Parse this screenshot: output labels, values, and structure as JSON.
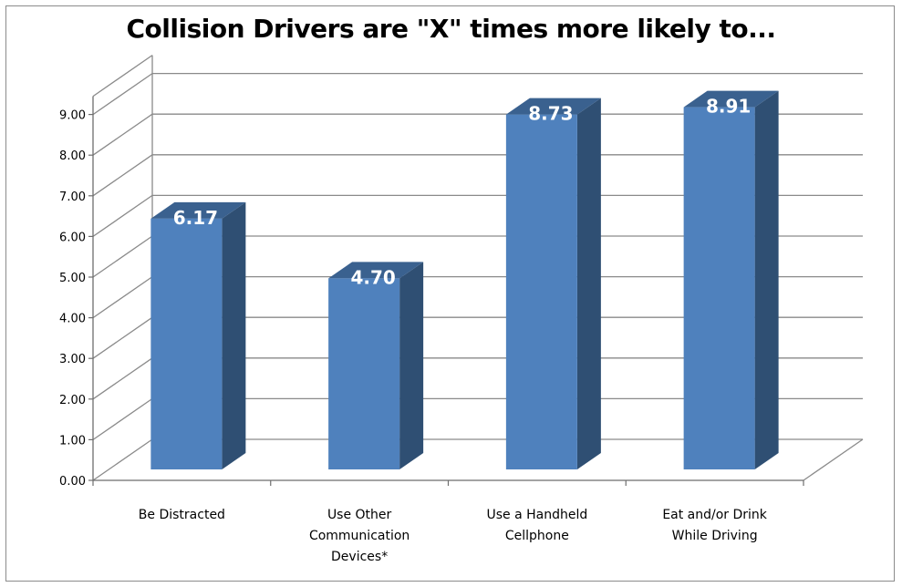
{
  "chart_data": {
    "type": "bar",
    "style": "3d-column",
    "title": "Collision Drivers are \"X\" times more likely to...",
    "categories": [
      [
        "Be Distracted"
      ],
      [
        "Use Other",
        "Communication",
        "Devices*"
      ],
      [
        "Use a Handheld",
        "Cellphone"
      ],
      [
        "Eat and/or Drink",
        "While Driving"
      ]
    ],
    "values": [
      6.17,
      4.7,
      8.73,
      8.91
    ],
    "data_labels": [
      "6.17",
      "4.70",
      "8.73",
      "8.91"
    ],
    "ylim": [
      0,
      9
    ],
    "yticks": [
      "0.00",
      "1.00",
      "2.00",
      "3.00",
      "4.00",
      "5.00",
      "6.00",
      "7.00",
      "8.00",
      "9.00"
    ],
    "grid": true,
    "legend": "none",
    "colors": {
      "bar_front": "#4f81bd",
      "bar_side": "#2f4f73",
      "bar_top": "#3a618f",
      "label": "#ffffff",
      "grid": "#8a8a8a"
    }
  }
}
